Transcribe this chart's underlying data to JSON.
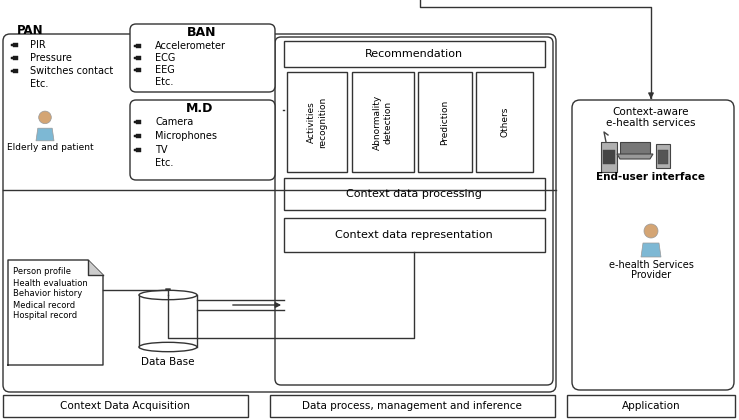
{
  "bg_color": "#ffffff",
  "ec": "#333333",
  "lw": 1.0,
  "pan_label": "PAN",
  "pan_items": [
    "PIR",
    "Pressure",
    "Switches contact",
    "Etc."
  ],
  "ban_label": "BAN",
  "ban_items": [
    "Accelerometer",
    "ECG",
    "EEG",
    "Etc."
  ],
  "md_label": "M.D",
  "md_items": [
    "Camera",
    "Microphones",
    "TV",
    "Etc."
  ],
  "recommendation": "Recommendation",
  "sub_boxes": [
    "Activities\nrecognition",
    "Abnormality\ndetection",
    "Prediction",
    "Others"
  ],
  "ctx_processing": "Context data processing",
  "ctx_representation": "Context data representation",
  "right_title1": "Context-aware",
  "right_title2": "e-health services",
  "end_user": "End-user interface",
  "ehealth1": "e-health Services",
  "ehealth2": "Provider",
  "doc_items": [
    "Person profile",
    "Health evaluation",
    "Behavior history",
    "Medical record",
    "Hospital record"
  ],
  "database_label": "Data Base",
  "bottom_left": "Context Data Acquisition",
  "bottom_mid": "Data process, management and inference",
  "bottom_right": "Application"
}
